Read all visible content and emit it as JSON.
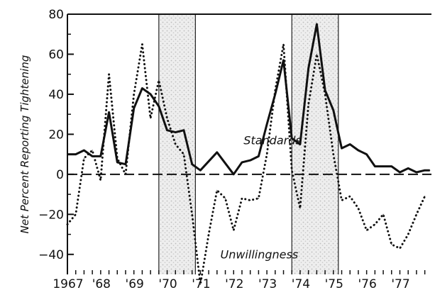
{
  "chart_data": {
    "type": "line",
    "title": "",
    "xlabel": "",
    "ylabel": "Net Percent Reporting Tightening",
    "xlim": [
      1967.0,
      1977.95
    ],
    "ylim": [
      -50,
      80
    ],
    "yticks": [
      -40,
      -20,
      0,
      20,
      40,
      60,
      80
    ],
    "y_tick_labels": [
      "−40",
      "−20",
      "0",
      "20",
      "40",
      "60",
      "80"
    ],
    "x_tick_labels": [
      "1967",
      "'68",
      "'69",
      "'70",
      "'71",
      "'72",
      "'73",
      "'74",
      "'75",
      "'76",
      "'77"
    ],
    "x_tick_positions": [
      1967.0,
      1968.0,
      1969.0,
      1970.0,
      1971.0,
      1972.0,
      1973.0,
      1974.0,
      1975.0,
      1976.0,
      1977.0
    ],
    "recessions": [
      [
        1969.75,
        1970.85
      ],
      [
        1973.75,
        1975.15
      ]
    ],
    "zero_line": "dashed",
    "series": [
      {
        "name": "Standards",
        "style": "solid",
        "points": [
          [
            1967.0,
            10
          ],
          [
            1967.25,
            10
          ],
          [
            1967.5,
            12
          ],
          [
            1967.75,
            9
          ],
          [
            1968.0,
            9
          ],
          [
            1968.25,
            31
          ],
          [
            1968.5,
            6
          ],
          [
            1968.75,
            5
          ],
          [
            1969.0,
            33
          ],
          [
            1969.25,
            43
          ],
          [
            1969.5,
            40
          ],
          [
            1969.75,
            34
          ],
          [
            1970.0,
            22
          ],
          [
            1970.25,
            21
          ],
          [
            1970.5,
            22
          ],
          [
            1970.75,
            5
          ],
          [
            1971.0,
            2
          ],
          [
            1971.5,
            11
          ],
          [
            1972.0,
            0
          ],
          [
            1972.25,
            6
          ],
          [
            1972.5,
            7
          ],
          [
            1972.75,
            9
          ],
          [
            1973.0,
            25
          ],
          [
            1973.25,
            40
          ],
          [
            1973.5,
            57
          ],
          [
            1973.75,
            18
          ],
          [
            1974.0,
            15
          ],
          [
            1974.25,
            53
          ],
          [
            1974.5,
            75
          ],
          [
            1974.75,
            42
          ],
          [
            1975.0,
            32
          ],
          [
            1975.25,
            13
          ],
          [
            1975.5,
            15
          ],
          [
            1975.75,
            12
          ],
          [
            1976.0,
            10
          ],
          [
            1976.25,
            4
          ],
          [
            1976.5,
            4
          ],
          [
            1976.75,
            4
          ],
          [
            1977.0,
            1
          ],
          [
            1977.25,
            3
          ],
          [
            1977.5,
            1
          ],
          [
            1977.75,
            2
          ],
          [
            1977.9,
            2
          ]
        ]
      },
      {
        "name": "Unwillingness",
        "style": "dotted",
        "points": [
          [
            1967.0,
            -25
          ],
          [
            1967.25,
            -20
          ],
          [
            1967.5,
            8
          ],
          [
            1967.75,
            12
          ],
          [
            1968.0,
            -3
          ],
          [
            1968.25,
            50
          ],
          [
            1968.5,
            8
          ],
          [
            1968.75,
            0
          ],
          [
            1969.0,
            40
          ],
          [
            1969.25,
            65
          ],
          [
            1969.5,
            28
          ],
          [
            1969.75,
            47
          ],
          [
            1970.0,
            28
          ],
          [
            1970.25,
            15
          ],
          [
            1970.5,
            10
          ],
          [
            1970.75,
            -20
          ],
          [
            1971.0,
            -55
          ],
          [
            1971.25,
            -30
          ],
          [
            1971.5,
            -8
          ],
          [
            1971.75,
            -12
          ],
          [
            1972.0,
            -28
          ],
          [
            1972.25,
            -12
          ],
          [
            1972.5,
            -13
          ],
          [
            1972.75,
            -12
          ],
          [
            1973.0,
            10
          ],
          [
            1973.25,
            42
          ],
          [
            1973.5,
            65
          ],
          [
            1973.75,
            2
          ],
          [
            1974.0,
            -17
          ],
          [
            1974.25,
            35
          ],
          [
            1974.5,
            60
          ],
          [
            1974.75,
            40
          ],
          [
            1975.0,
            10
          ],
          [
            1975.25,
            -13
          ],
          [
            1975.5,
            -11
          ],
          [
            1975.75,
            -17
          ],
          [
            1976.0,
            -28
          ],
          [
            1976.25,
            -25
          ],
          [
            1976.5,
            -20
          ],
          [
            1976.75,
            -35
          ],
          [
            1977.0,
            -37
          ],
          [
            1977.25,
            -30
          ],
          [
            1977.5,
            -20
          ],
          [
            1977.75,
            -11
          ]
        ]
      }
    ],
    "annotations": [
      {
        "text": "Standards",
        "x": 1972.3,
        "y": 15
      },
      {
        "text": "Unwillingness",
        "x": 1971.6,
        "y": -42
      }
    ]
  }
}
